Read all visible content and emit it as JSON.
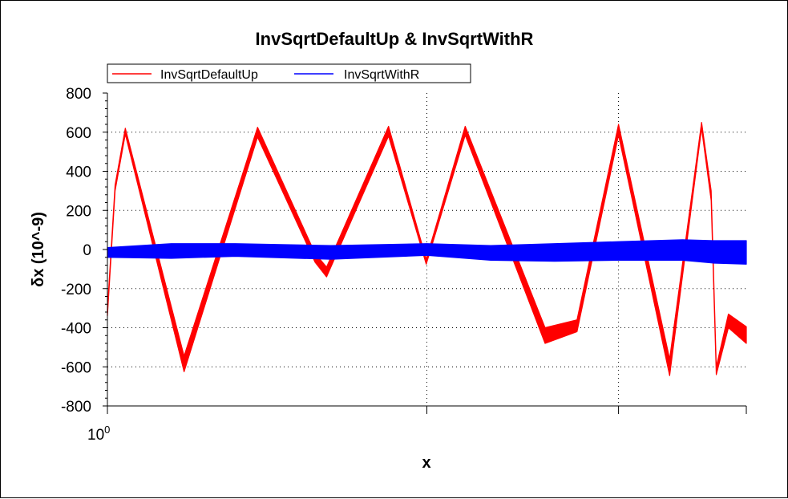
{
  "chart_data": {
    "type": "line",
    "title": "InvSqrtDefaultUp & InvSqrtWithR",
    "xlabel": "x",
    "ylabel": "δx (10^-9)",
    "x_tick_label": {
      "base": "10",
      "exponent": "0"
    },
    "xlim": [
      0,
      1
    ],
    "ylim": [
      -800,
      800
    ],
    "y_ticks": [
      "800",
      "600",
      "400",
      "200",
      "0",
      "-200",
      "-400",
      "-600",
      "-800"
    ],
    "y_tick_values": [
      800,
      600,
      400,
      200,
      0,
      -200,
      -400,
      -600,
      -800
    ],
    "grid": true,
    "legend_placement": "top-left",
    "series": [
      {
        "name": "InvSqrtDefaultUp",
        "color": "#ff0000",
        "x": [
          0.0,
          0.012,
          0.028,
          0.12,
          0.235,
          0.325,
          0.343,
          0.44,
          0.499,
          0.56,
          0.685,
          0.735,
          0.8,
          0.88,
          0.93,
          0.945,
          0.953,
          0.972,
          1.0
        ],
        "y_upper": [
          -310,
          330,
          620,
          -545,
          625,
          -20,
          -90,
          630,
          -50,
          630,
          -400,
          -360,
          640,
          -560,
          650,
          300,
          -600,
          -330,
          -395
        ],
        "y_lower": [
          -340,
          300,
          590,
          -625,
          575,
          -65,
          -140,
          580,
          -75,
          585,
          -480,
          -420,
          585,
          -645,
          620,
          250,
          -640,
          -400,
          -480
        ]
      },
      {
        "name": "InvSqrtWithR",
        "color": "#0000ff",
        "x": [
          0.0,
          0.1,
          0.2,
          0.35,
          0.5,
          0.6,
          0.7,
          0.8,
          0.9,
          0.95,
          1.0
        ],
        "y_upper": [
          10,
          30,
          30,
          20,
          30,
          20,
          30,
          40,
          50,
          45,
          45
        ],
        "y_lower": [
          -40,
          -45,
          -35,
          -50,
          -30,
          -55,
          -60,
          -55,
          -55,
          -70,
          -75
        ]
      }
    ]
  }
}
